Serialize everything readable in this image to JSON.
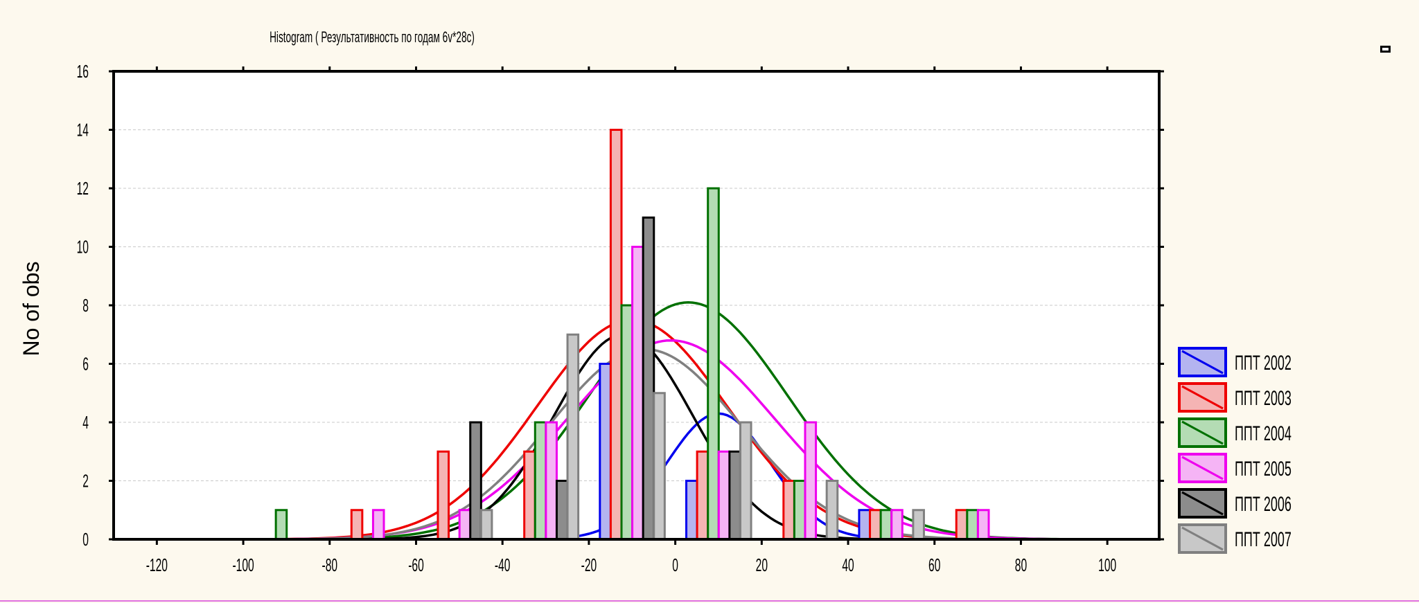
{
  "chart_data": {
    "type": "bar",
    "title": "Histogram ( Результативность по годам 6v*28c)",
    "xlabel": "",
    "ylabel": "No of obs",
    "xlim": [
      -130,
      112
    ],
    "ylim": [
      0,
      16
    ],
    "x_ticks": [
      "-120",
      "-100",
      "-80",
      "-60",
      "-40",
      "-20",
      "0",
      "20",
      "40",
      "60",
      "80",
      "100"
    ],
    "y_ticks": [
      "0",
      "2",
      "4",
      "6",
      "8",
      "10",
      "12",
      "14",
      "16"
    ],
    "grid": "horizontal dashed",
    "legend_position": "right",
    "bar_width": 2.5,
    "series": [
      {
        "name": "ППТ 2002",
        "stroke": "#0000ee",
        "fill": "#b4b4f0",
        "curve": {
          "mean": 10,
          "sd": 12,
          "peak": 4.3
        },
        "bars": [
          {
            "x": -16.2,
            "y": 6
          },
          {
            "x": 3.8,
            "y": 2
          },
          {
            "x": 43.8,
            "y": 1
          }
        ]
      },
      {
        "name": "ППТ 2003",
        "stroke": "#ee0000",
        "fill": "#f5b4b4",
        "curve": {
          "mean": -10,
          "sd": 22,
          "peak": 7.5
        },
        "bars": [
          {
            "x": -73.7,
            "y": 1
          },
          {
            "x": -53.7,
            "y": 3
          },
          {
            "x": -33.7,
            "y": 3
          },
          {
            "x": -13.7,
            "y": 14
          },
          {
            "x": 6.3,
            "y": 3
          },
          {
            "x": 26.3,
            "y": 2
          },
          {
            "x": 46.3,
            "y": 1
          },
          {
            "x": 66.3,
            "y": 1
          }
        ]
      },
      {
        "name": "ППТ 2004",
        "stroke": "#007000",
        "fill": "#b4dcb4",
        "curve": {
          "mean": 3,
          "sd": 23,
          "peak": 8.1
        },
        "bars": [
          {
            "x": -91.2,
            "y": 1
          },
          {
            "x": -31.2,
            "y": 4
          },
          {
            "x": -11.2,
            "y": 8
          },
          {
            "x": 8.8,
            "y": 12
          },
          {
            "x": 28.8,
            "y": 2
          },
          {
            "x": 48.8,
            "y": 1
          },
          {
            "x": 68.8,
            "y": 1
          }
        ]
      },
      {
        "name": "ППТ 2005",
        "stroke": "#ee00ee",
        "fill": "#f5b4f5",
        "curve": {
          "mean": -1,
          "sd": 24,
          "peak": 6.8
        },
        "bars": [
          {
            "x": -68.7,
            "y": 1
          },
          {
            "x": -48.7,
            "y": 1
          },
          {
            "x": -28.7,
            "y": 4
          },
          {
            "x": -8.7,
            "y": 10
          },
          {
            "x": 11.3,
            "y": 3
          },
          {
            "x": 31.3,
            "y": 4
          },
          {
            "x": 51.3,
            "y": 1
          },
          {
            "x": 71.3,
            "y": 1
          }
        ]
      },
      {
        "name": "ППТ 2006",
        "stroke": "#000000",
        "fill": "#8c8c8c",
        "curve": {
          "mean": -12,
          "sd": 16,
          "peak": 7.0
        },
        "bars": [
          {
            "x": -46.2,
            "y": 4
          },
          {
            "x": -26.2,
            "y": 2
          },
          {
            "x": -6.2,
            "y": 11
          },
          {
            "x": 13.8,
            "y": 3
          }
        ]
      },
      {
        "name": "ППТ 2007",
        "stroke": "#808080",
        "fill": "#c8c8c8",
        "curve": {
          "mean": -7,
          "sd": 22,
          "peak": 6.5
        },
        "bars": [
          {
            "x": -43.7,
            "y": 1
          },
          {
            "x": -23.7,
            "y": 7
          },
          {
            "x": -3.7,
            "y": 5
          },
          {
            "x": 16.3,
            "y": 4
          },
          {
            "x": 36.3,
            "y": 2
          },
          {
            "x": 56.3,
            "y": 1
          }
        ]
      }
    ]
  }
}
